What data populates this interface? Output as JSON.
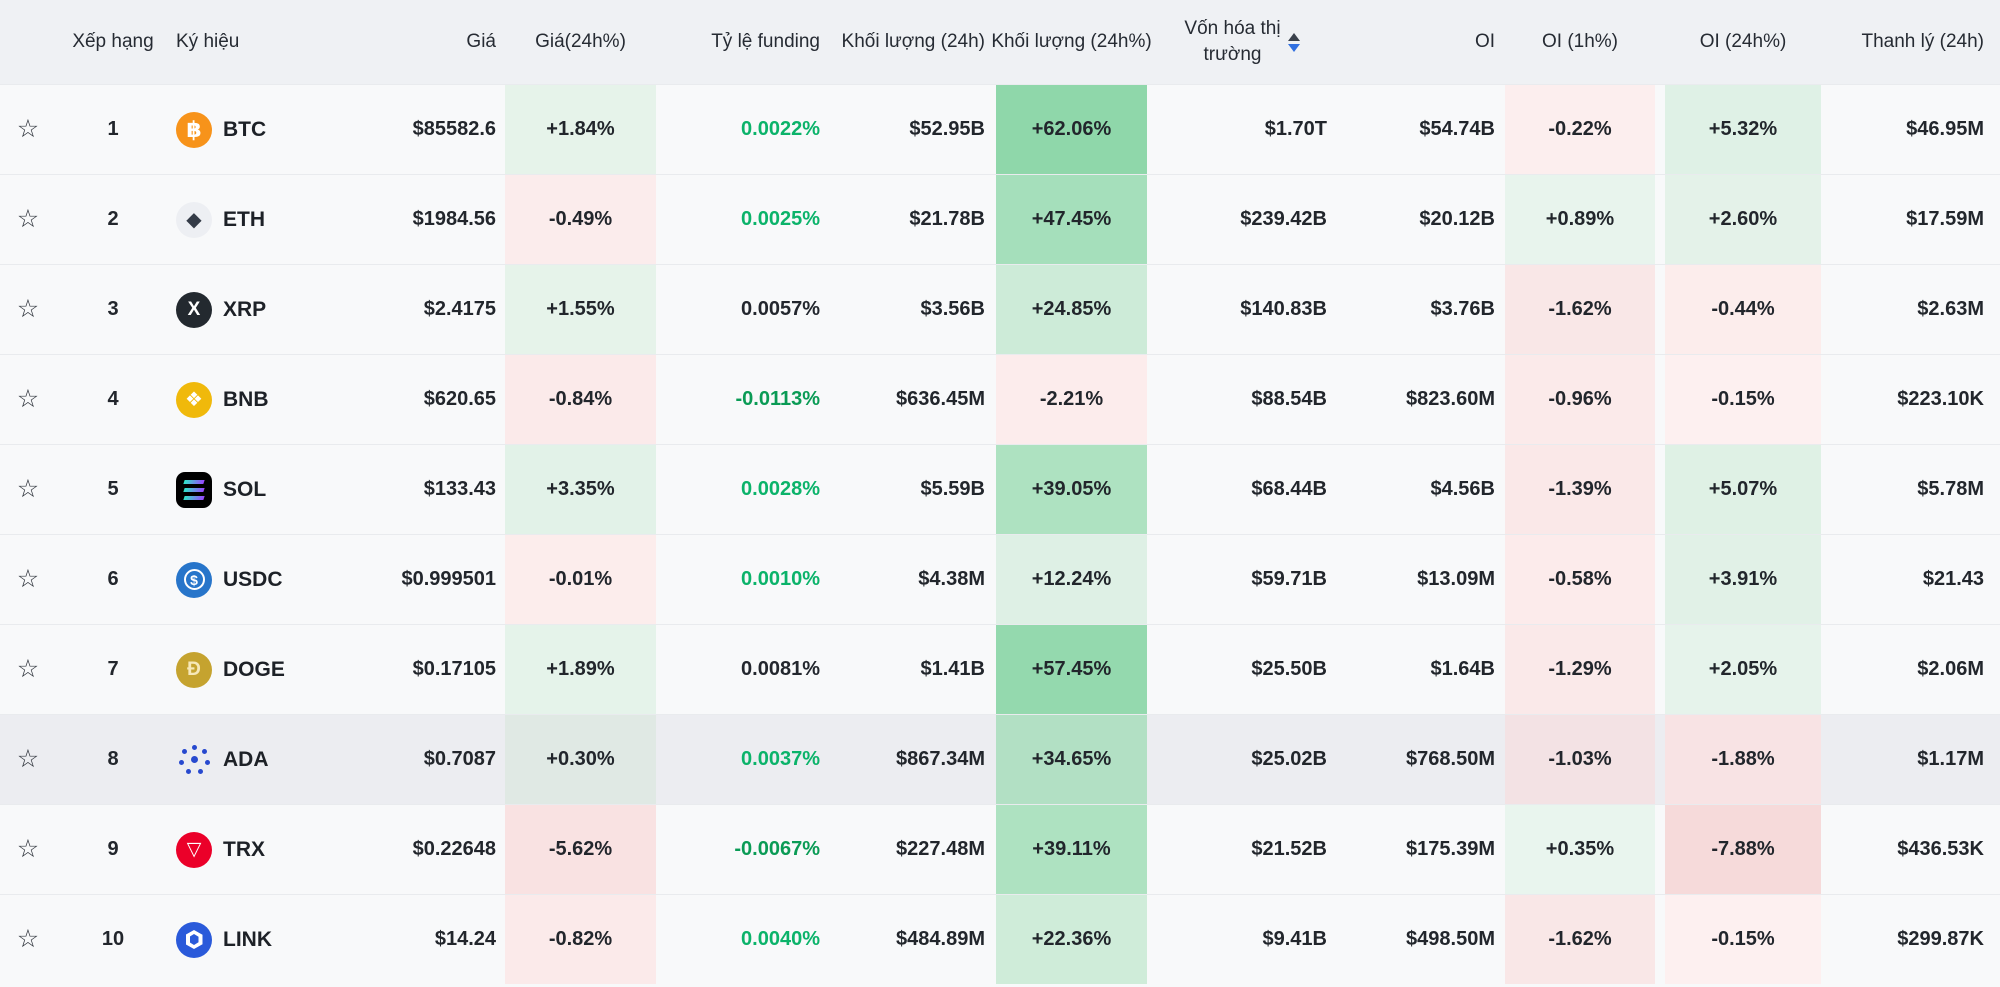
{
  "header": {
    "rank": "Xếp hạng",
    "symbol": "Ký hiệu",
    "price": "Giá",
    "price_24h": "Giá(24h%)",
    "funding": "Tỷ lệ funding",
    "volume_24h": "Khối lượng (24h)",
    "volume_24h_pct": "Khối lượng (24h%)",
    "market_cap_line1": "Vốn hóa thị",
    "market_cap_line2": "trường",
    "market_cap_sort": "desc",
    "oi": "OI",
    "oi_1h": "OI (1h%)",
    "oi_24h": "OI (24h%)",
    "liquidation": "Thanh lý (24h)"
  },
  "colors": {
    "green_text": "#0bb36a",
    "green_text_negative": "#0a9b55",
    "dark_text": "#23272e",
    "sort_arrow_active": "#2f6fe0",
    "sort_arrow_inactive": "#3a414b",
    "row_bg": "#f8f9fa",
    "row_highlight_bg": "#ecedf1",
    "header_bg": "#eff1f4"
  },
  "icons": {
    "btc": {
      "style": "circle",
      "bg": "#f7931a",
      "fg": "#ffffff",
      "glyph": "฿",
      "size": "22px"
    },
    "eth": {
      "style": "circle",
      "bg": "#edeff3",
      "fg": "#343b47",
      "glyph": "◆",
      "size": "20px"
    },
    "xrp": {
      "style": "circle",
      "bg": "#23292f",
      "fg": "#ffffff",
      "glyph": "X",
      "size": "19px"
    },
    "bnb": {
      "style": "circle",
      "bg": "#f0b90b",
      "fg": "#ffffff",
      "glyph": "❖",
      "size": "20px"
    },
    "sol": {
      "style": "sol",
      "bg": "#000000"
    },
    "usdc": {
      "style": "usdc",
      "bg": "#2775ca"
    },
    "doge": {
      "style": "circle",
      "bg": "#c5a32f",
      "fg": "#f6e8b9",
      "glyph": "Ð",
      "size": "19px"
    },
    "ada": {
      "style": "ada",
      "bg": "transparent"
    },
    "trx": {
      "style": "circle",
      "bg": "#eb0029",
      "fg": "#ffffff",
      "glyph": "▽",
      "size": "19px"
    },
    "link": {
      "style": "link",
      "bg": "#2a5ada"
    }
  },
  "rows": [
    {
      "rank": "1",
      "symbol": "BTC",
      "icon": "btc",
      "price": "$85582.6",
      "price_24h": {
        "t": "+1.84%",
        "bg": "#e6f3ea"
      },
      "funding": {
        "t": "0.0022%",
        "c": "#0bb36a"
      },
      "vol": "$52.95B",
      "vol_pct": {
        "t": "+62.06%",
        "bg": "#8fd7aa"
      },
      "mcap": "$1.70T",
      "oi": "$54.74B",
      "oi1h": {
        "t": "-0.22%",
        "bg": "#fceeee"
      },
      "oi24h": {
        "t": "+5.32%",
        "bg": "#dff1e6"
      },
      "liq": "$46.95M",
      "highlighted": false
    },
    {
      "rank": "2",
      "symbol": "ETH",
      "icon": "eth",
      "price": "$1984.56",
      "price_24h": {
        "t": "-0.49%",
        "bg": "#fbecec"
      },
      "funding": {
        "t": "0.0025%",
        "c": "#0bb36a"
      },
      "vol": "$21.78B",
      "vol_pct": {
        "t": "+47.45%",
        "bg": "#a5dfbb"
      },
      "mcap": "$239.42B",
      "oi": "$20.12B",
      "oi1h": {
        "t": "+0.89%",
        "bg": "#e8f4ed"
      },
      "oi24h": {
        "t": "+2.60%",
        "bg": "#e4f2e9"
      },
      "liq": "$17.59M",
      "highlighted": false
    },
    {
      "rank": "3",
      "symbol": "XRP",
      "icon": "xrp",
      "price": "$2.4175",
      "price_24h": {
        "t": "+1.55%",
        "bg": "#e6f3ea"
      },
      "funding": {
        "t": "0.0057%",
        "c": "#23272e"
      },
      "vol": "$3.56B",
      "vol_pct": {
        "t": "+24.85%",
        "bg": "#cdebd8"
      },
      "mcap": "$140.83B",
      "oi": "$3.76B",
      "oi1h": {
        "t": "-1.62%",
        "bg": "#f9e7e7"
      },
      "oi24h": {
        "t": "-0.44%",
        "bg": "#fcedec"
      },
      "liq": "$2.63M",
      "highlighted": false
    },
    {
      "rank": "4",
      "symbol": "BNB",
      "icon": "bnb",
      "price": "$620.65",
      "price_24h": {
        "t": "-0.84%",
        "bg": "#fbeaea"
      },
      "funding": {
        "t": "-0.0113%",
        "c": "#0a9b55"
      },
      "vol": "$636.45M",
      "vol_pct": {
        "t": "-2.21%",
        "bg": "#fcecec"
      },
      "mcap": "$88.54B",
      "oi": "$823.60M",
      "oi1h": {
        "t": "-0.96%",
        "bg": "#fbeaea"
      },
      "oi24h": {
        "t": "-0.15%",
        "bg": "#fdf0f0"
      },
      "liq": "$223.10K",
      "highlighted": false
    },
    {
      "rank": "5",
      "symbol": "SOL",
      "icon": "sol",
      "price": "$133.43",
      "price_24h": {
        "t": "+3.35%",
        "bg": "#e2f2e8"
      },
      "funding": {
        "t": "0.0028%",
        "c": "#0bb36a"
      },
      "vol": "$5.59B",
      "vol_pct": {
        "t": "+39.05%",
        "bg": "#aee2c1"
      },
      "mcap": "$68.44B",
      "oi": "$4.56B",
      "oi1h": {
        "t": "-1.39%",
        "bg": "#fae8e8"
      },
      "oi24h": {
        "t": "+5.07%",
        "bg": "#dff1e5"
      },
      "liq": "$5.78M",
      "highlighted": false
    },
    {
      "rank": "6",
      "symbol": "USDC",
      "icon": "usdc",
      "price": "$0.999501",
      "price_24h": {
        "t": "-0.01%",
        "bg": "#fcedec"
      },
      "funding": {
        "t": "0.0010%",
        "c": "#0bb36a"
      },
      "vol": "$4.38M",
      "vol_pct": {
        "t": "+12.24%",
        "bg": "#def0e5"
      },
      "mcap": "$59.71B",
      "oi": "$13.09M",
      "oi1h": {
        "t": "-0.58%",
        "bg": "#fcebeb"
      },
      "oi24h": {
        "t": "+3.91%",
        "bg": "#e1f1e7"
      },
      "liq": "$21.43",
      "highlighted": false
    },
    {
      "rank": "7",
      "symbol": "DOGE",
      "icon": "doge",
      "price": "$0.17105",
      "price_24h": {
        "t": "+1.89%",
        "bg": "#e5f3ea"
      },
      "funding": {
        "t": "0.0081%",
        "c": "#23272e"
      },
      "vol": "$1.41B",
      "vol_pct": {
        "t": "+57.45%",
        "bg": "#94d9ae"
      },
      "mcap": "$25.50B",
      "oi": "$1.64B",
      "oi1h": {
        "t": "-1.29%",
        "bg": "#fae9e9"
      },
      "oi24h": {
        "t": "+2.05%",
        "bg": "#e6f3eb"
      },
      "liq": "$2.06M",
      "highlighted": false
    },
    {
      "rank": "8",
      "symbol": "ADA",
      "icon": "ada",
      "price": "$0.7087",
      "price_24h": {
        "t": "+0.30%",
        "bg": "#e0e9e4"
      },
      "funding": {
        "t": "0.0037%",
        "c": "#0bb36a"
      },
      "vol": "$867.34M",
      "vol_pct": {
        "t": "+34.65%",
        "bg": "#b2e0c4"
      },
      "mcap": "$25.02B",
      "oi": "$768.50M",
      "oi1h": {
        "t": "-1.03%",
        "bg": "#f3e2e4"
      },
      "oi24h": {
        "t": "-1.88%",
        "bg": "#f8e3e4"
      },
      "liq": "$1.17M",
      "highlighted": true
    },
    {
      "rank": "9",
      "symbol": "TRX",
      "icon": "trx",
      "price": "$0.22648",
      "price_24h": {
        "t": "-5.62%",
        "bg": "#f9e2e2"
      },
      "funding": {
        "t": "-0.0067%",
        "c": "#0a9b55"
      },
      "vol": "$227.48M",
      "vol_pct": {
        "t": "+39.11%",
        "bg": "#aee2c1"
      },
      "mcap": "$21.52B",
      "oi": "$175.39M",
      "oi1h": {
        "t": "+0.35%",
        "bg": "#e9f5ee"
      },
      "oi24h": {
        "t": "-7.88%",
        "bg": "#f6dada"
      },
      "liq": "$436.53K",
      "highlighted": false
    },
    {
      "rank": "10",
      "symbol": "LINK",
      "icon": "link",
      "price": "$14.24",
      "price_24h": {
        "t": "-0.82%",
        "bg": "#fbeaea"
      },
      "funding": {
        "t": "0.0040%",
        "c": "#0bb36a"
      },
      "vol": "$484.89M",
      "vol_pct": {
        "t": "+22.36%",
        "bg": "#cfecd9"
      },
      "mcap": "$9.41B",
      "oi": "$498.50M",
      "oi1h": {
        "t": "-1.62%",
        "bg": "#f9e7e7"
      },
      "oi24h": {
        "t": "-0.15%",
        "bg": "#fdf0f0"
      },
      "liq": "$299.87K",
      "highlighted": false
    }
  ]
}
